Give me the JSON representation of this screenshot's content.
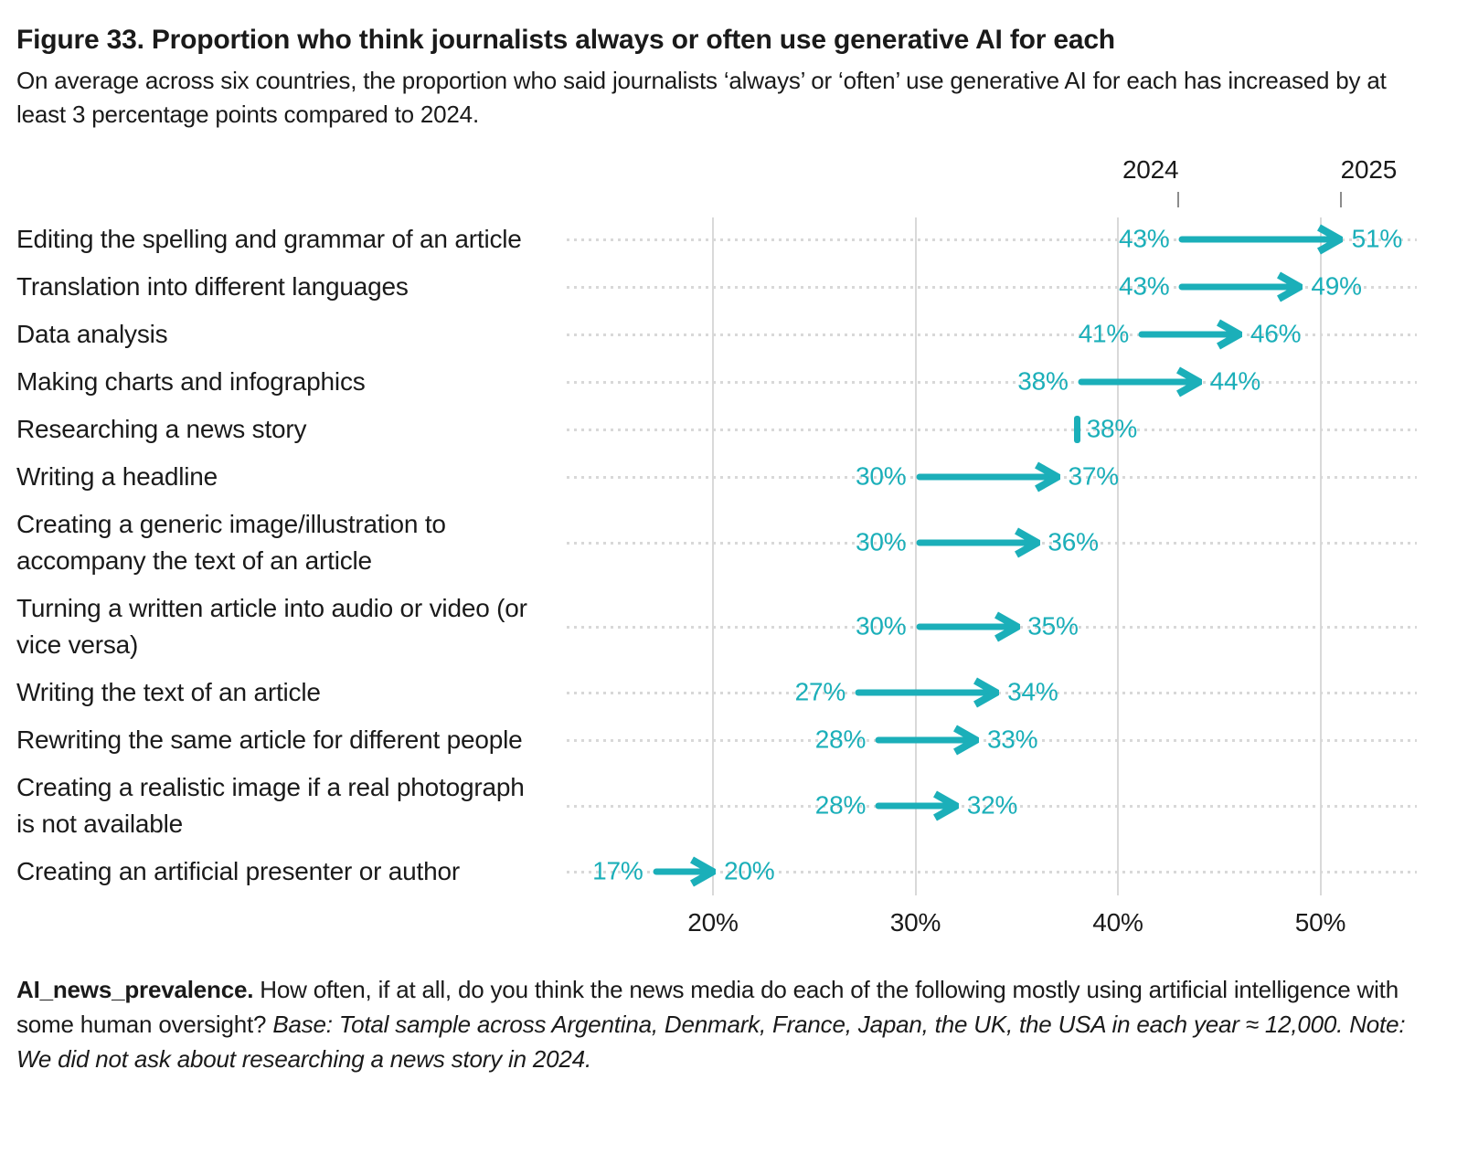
{
  "header": {
    "title": "Figure 33. Proportion who think journalists always or often use generative AI for each",
    "subtitle": "On average across six countries, the proportion who said journalists ‘always’ or ‘often’ use generative AI for each has increased by at least 3 percentage points compared to 2024."
  },
  "chart_data": {
    "type": "dumbbell-arrow",
    "year_headers": [
      "2024",
      "2025"
    ],
    "unit": "%",
    "x_axis": {
      "tick_labels": [
        "20%",
        "30%",
        "40%",
        "50%"
      ],
      "tick_values": [
        20,
        30,
        40,
        50
      ],
      "range_min": 13,
      "range_max": 55,
      "grid": true
    },
    "rows": [
      {
        "label": "Editing the spelling and grammar of an article",
        "v2024": 43,
        "v2025": 51
      },
      {
        "label": "Translation into different languages",
        "v2024": 43,
        "v2025": 49
      },
      {
        "label": "Data analysis",
        "v2024": 41,
        "v2025": 46
      },
      {
        "label": "Making charts and infographics",
        "v2024": 38,
        "v2025": 44
      },
      {
        "label": "Researching a news story",
        "v2024": null,
        "v2025": 38
      },
      {
        "label": "Writing a headline",
        "v2024": 30,
        "v2025": 37
      },
      {
        "label": "Creating a generic image/illustration to accompany the text of an article",
        "v2024": 30,
        "v2025": 36
      },
      {
        "label": "Turning a written article into audio or video (or vice versa)",
        "v2024": 30,
        "v2025": 35
      },
      {
        "label": "Writing the text of an article",
        "v2024": 27,
        "v2025": 34
      },
      {
        "label": "Rewriting the same article for different people",
        "v2024": 28,
        "v2025": 33
      },
      {
        "label": "Creating a realistic image if a real photograph is not available",
        "v2024": 28,
        "v2025": 32
      },
      {
        "label": "Creating an artificial presenter or author",
        "v2024": 17,
        "v2025": 20
      }
    ]
  },
  "colors": {
    "accent_teal": "#1BAFB9",
    "text": "#1A1A1A",
    "gridline": "#D9D9D9",
    "header_tick": "#8C8C8C"
  },
  "footer": {
    "variable_label": "AI_news_prevalence.",
    "question": "How often, if at all, do you think the news media do each of the following mostly using artificial intelligence with some human oversight?",
    "base_note": "Base: Total sample across Argentina, Denmark, France, Japan, the UK, the USA in each year ≈ 12,000. Note: We did not ask about researching a news story in 2024."
  }
}
